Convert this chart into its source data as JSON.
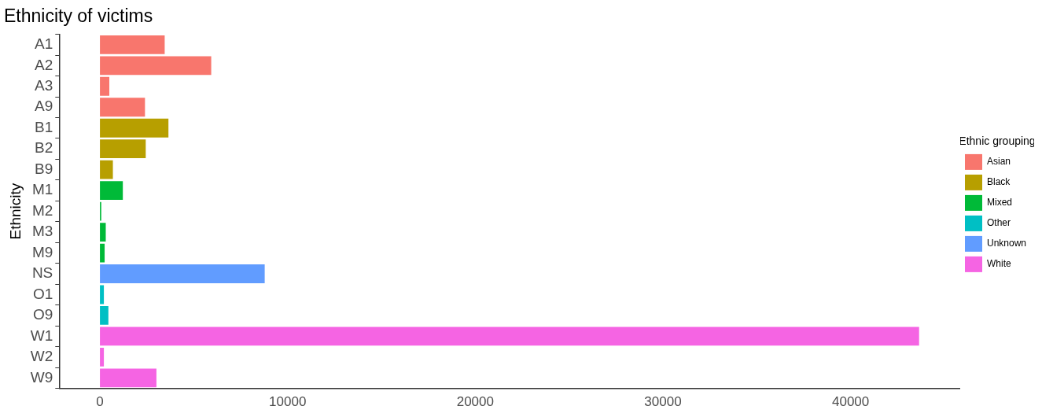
{
  "chart_data": {
    "type": "bar",
    "orientation": "horizontal",
    "stacked": true,
    "title": "Ethnicity of victims",
    "ylabel": "Ethnicity",
    "legend_title": "Ethnic grouping",
    "legend": "right",
    "grid": false,
    "categories": [
      "A1",
      "A2",
      "A3",
      "A9",
      "B1",
      "B2",
      "B9",
      "M1",
      "M2",
      "M3",
      "M9",
      "NS",
      "O1",
      "O9",
      "W1",
      "W2",
      "W9"
    ],
    "xlim": [
      -2170,
      45840
    ],
    "xticks": [
      0,
      10000,
      20000,
      30000,
      40000
    ],
    "series": [
      {
        "name": "Asian",
        "color": "#f8766d",
        "values": [
          3450,
          5930,
          500,
          2400,
          null,
          null,
          null,
          null,
          null,
          null,
          null,
          null,
          null,
          null,
          null,
          null,
          null
        ]
      },
      {
        "name": "Black",
        "color": "#b79f00",
        "values": [
          null,
          null,
          null,
          null,
          3650,
          2440,
          690,
          null,
          null,
          null,
          null,
          null,
          null,
          null,
          null,
          null,
          null
        ]
      },
      {
        "name": "Mixed",
        "color": "#00ba38",
        "values": [
          null,
          null,
          null,
          null,
          null,
          null,
          null,
          1220,
          70,
          310,
          250,
          null,
          null,
          null,
          null,
          null,
          null
        ]
      },
      {
        "name": "Other",
        "color": "#00bfc4",
        "values": [
          null,
          null,
          null,
          null,
          null,
          null,
          null,
          null,
          null,
          null,
          null,
          null,
          210,
          450,
          null,
          null,
          null
        ]
      },
      {
        "name": "Unknown",
        "color": "#619cff",
        "values": [
          null,
          null,
          null,
          null,
          null,
          null,
          null,
          null,
          null,
          null,
          null,
          8780,
          null,
          null,
          null,
          null,
          null
        ]
      },
      {
        "name": "White",
        "color": "#f564e3",
        "values": [
          null,
          null,
          null,
          null,
          null,
          null,
          null,
          null,
          null,
          null,
          null,
          null,
          null,
          null,
          43650,
          210,
          3010
        ]
      }
    ]
  }
}
